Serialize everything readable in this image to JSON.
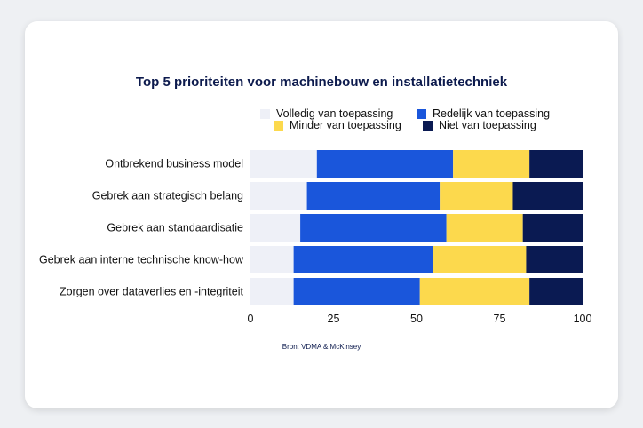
{
  "chart_data": {
    "type": "bar",
    "orientation": "horizontal",
    "stacked": true,
    "title": "Top 5 prioriteiten voor machinebouw en installatietechniek",
    "categories": [
      "Ontbrekend business model",
      "Gebrek aan strategisch belang",
      "Gebrek aan standaardisatie",
      "Gebrek aan interne technische know-how",
      "Zorgen over dataverlies en -integriteit"
    ],
    "series": [
      {
        "name": "Volledig van toepassing",
        "color": "#eef0f7",
        "values": [
          20,
          17,
          15,
          13,
          13
        ]
      },
      {
        "name": "Redelijk van toepassing",
        "color": "#1a56db",
        "values": [
          41,
          40,
          44,
          42,
          38
        ]
      },
      {
        "name": "Minder van toepassing",
        "color": "#fcd94d",
        "values": [
          23,
          22,
          23,
          28,
          33
        ]
      },
      {
        "name": "Niet van toepassing",
        "color": "#0a1a52",
        "values": [
          16,
          21,
          18,
          17,
          16
        ]
      }
    ],
    "xlim": [
      0,
      100
    ],
    "xticks": [
      0,
      25,
      50,
      75,
      100
    ],
    "legend_position": "top",
    "grid": false
  },
  "source": "Bron: VDMA & McKinsey"
}
